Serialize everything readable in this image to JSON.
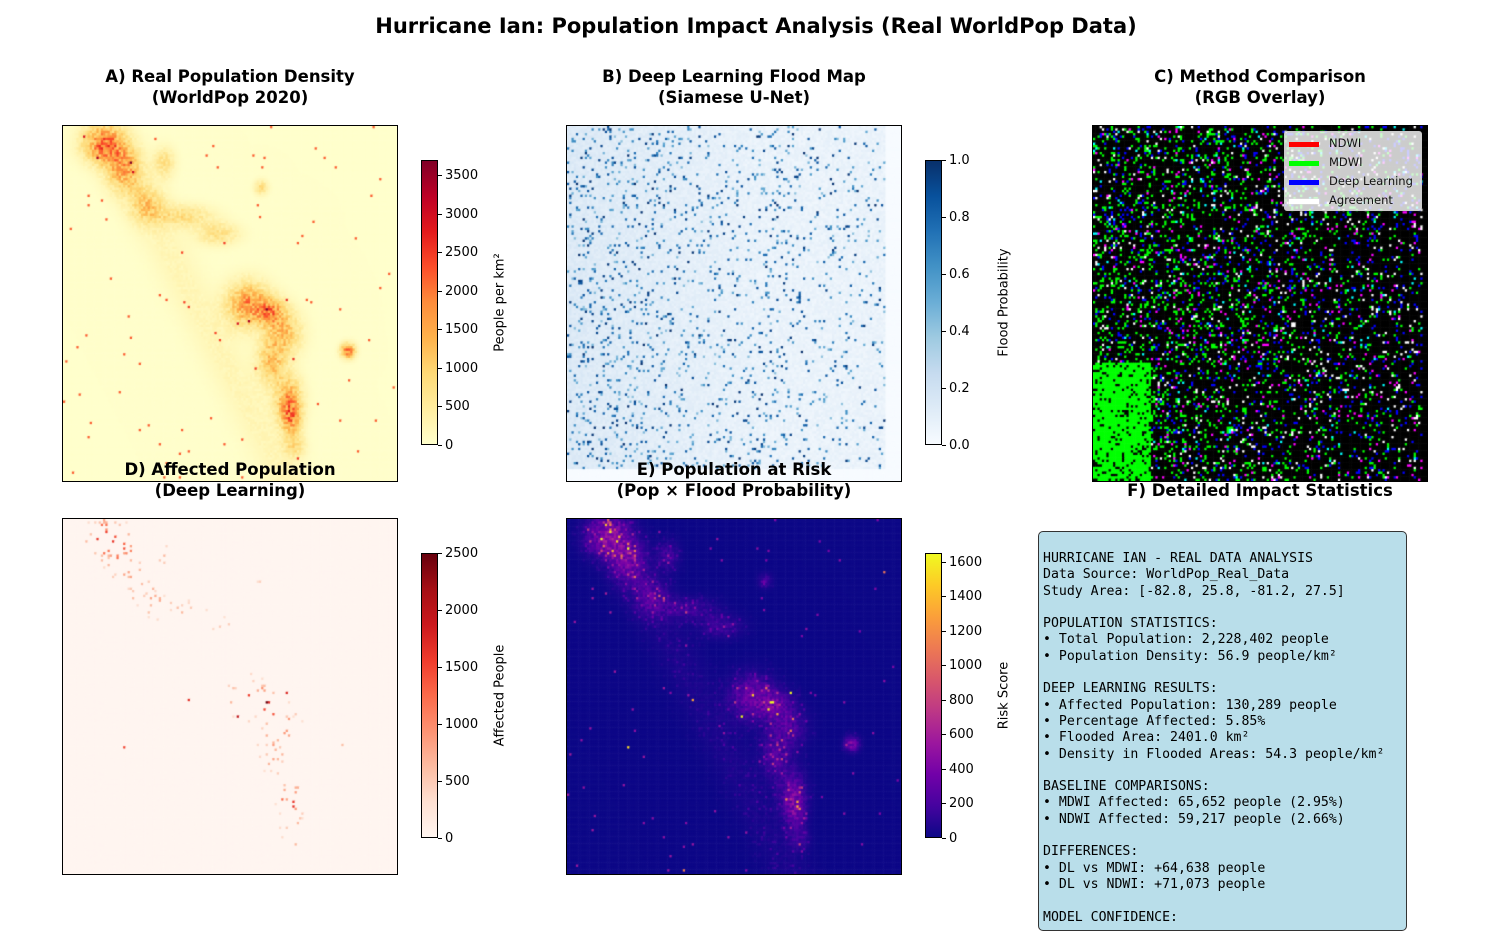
{
  "suptitle": "Hurricane Ian: Population Impact Analysis (Real WorldPop Data)",
  "panels": {
    "A": {
      "title": "A) Real Population Density\n(WorldPop 2020)",
      "colorbar_label": "People per km²",
      "colormap": "YlOrRd",
      "ticks": [
        "0",
        "500",
        "1000",
        "1500",
        "2000",
        "2500",
        "3000",
        "3500"
      ],
      "range": [
        0,
        3700
      ]
    },
    "B": {
      "title": "B) Deep Learning Flood Map\n(Siamese U-Net)",
      "colorbar_label": "Flood Probability",
      "colormap": "Blues",
      "ticks": [
        "0.0",
        "0.2",
        "0.4",
        "0.6",
        "0.8",
        "1.0"
      ],
      "range": [
        0,
        1.0
      ]
    },
    "C": {
      "title": "C) Method Comparison\n(RGB Overlay)",
      "legend": [
        {
          "label": "NDWI",
          "color": "#ff0000"
        },
        {
          "label": "MDWI",
          "color": "#00ff00"
        },
        {
          "label": "Deep Learning",
          "color": "#0000ff"
        },
        {
          "label": "Agreement",
          "color": "#ffffff"
        }
      ]
    },
    "D": {
      "title": "D) Affected Population\n(Deep Learning)",
      "colorbar_label": "Affected People",
      "colormap": "Reds",
      "ticks": [
        "0",
        "500",
        "1000",
        "1500",
        "2000",
        "2500"
      ],
      "range": [
        0,
        2500
      ]
    },
    "E": {
      "title": "E) Population at Risk\n(Pop × Flood Probability)",
      "colorbar_label": "Risk Score",
      "colormap": "plasma",
      "ticks": [
        "0",
        "200",
        "400",
        "600",
        "800",
        "1000",
        "1200",
        "1400",
        "1600"
      ],
      "range": [
        0,
        1650
      ]
    },
    "F": {
      "title": "F) Detailed Impact Statistics"
    }
  },
  "stats_text": "HURRICANE IAN - REAL DATA ANALYSIS\nData Source: WorldPop_Real_Data\nStudy Area: [-82.8, 25.8, -81.2, 27.5]\n\nPOPULATION STATISTICS:\n• Total Population: 2,228,402 people\n• Population Density: 56.9 people/km²\n\nDEEP LEARNING RESULTS:\n• Affected Population: 130,289 people\n• Percentage Affected: 5.85%\n• Flooded Area: 2401.0 km²\n• Density in Flooded Areas: 54.3 people/km²\n\nBASELINE COMPARISONS:\n• MDWI Affected: 65,652 people (2.95%)\n• NDWI Affected: 59,217 people (2.66%)\n\nDIFFERENCES:\n• DL vs MDWI: +64,638 people\n• DL vs NDWI: +71,073 people\n\nMODEL CONFIDENCE:",
  "chart_data": [
    {
      "type": "heatmap",
      "title": "A) Real Population Density\n(WorldPop 2020)",
      "colorbar_label": "People per km²",
      "value_range": [
        0,
        3700
      ],
      "colormap": "YlOrRd"
    },
    {
      "type": "heatmap",
      "title": "B) Deep Learning Flood Map\n(Siamese U-Net)",
      "colorbar_label": "Flood Probability",
      "value_range": [
        0,
        1.0
      ],
      "colormap": "Blues"
    },
    {
      "type": "heatmap",
      "title": "C) Method Comparison\n(RGB Overlay)",
      "legend": [
        "NDWI",
        "MDWI",
        "Deep Learning",
        "Agreement"
      ]
    },
    {
      "type": "heatmap",
      "title": "D) Affected Population\n(Deep Learning)",
      "colorbar_label": "Affected People",
      "value_range": [
        0,
        2500
      ],
      "colormap": "Reds"
    },
    {
      "type": "heatmap",
      "title": "E) Population at Risk\n(Pop × Flood Probability)",
      "colorbar_label": "Risk Score",
      "value_range": [
        0,
        1650
      ],
      "colormap": "plasma"
    },
    {
      "type": "table",
      "title": "F) Detailed Impact Statistics",
      "rows": [
        [
          "Total Population",
          "2,228,402 people"
        ],
        [
          "Population Density",
          "56.9 people/km²"
        ],
        [
          "Affected Population",
          "130,289 people"
        ],
        [
          "Percentage Affected",
          "5.85%"
        ],
        [
          "Flooded Area",
          "2401.0 km²"
        ],
        [
          "Density in Flooded Areas",
          "54.3 people/km²"
        ],
        [
          "MDWI Affected",
          "65,652 people (2.95%)"
        ],
        [
          "NDWI Affected",
          "59,217 people (2.66%)"
        ],
        [
          "DL vs MDWI",
          "+64,638 people"
        ],
        [
          "DL vs NDWI",
          "+71,073 people"
        ]
      ]
    }
  ]
}
